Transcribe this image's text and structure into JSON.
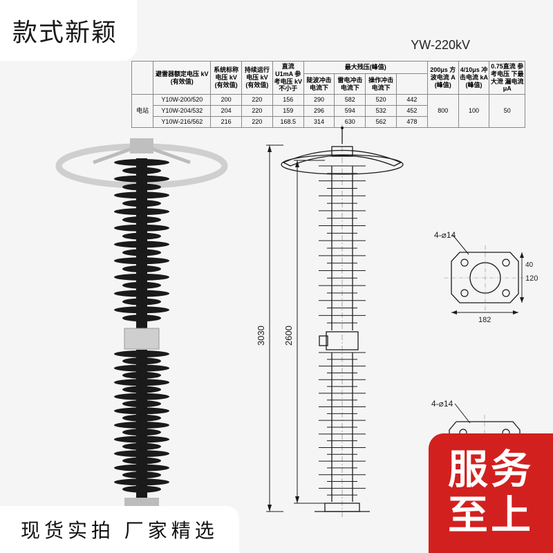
{
  "badges": {
    "top_left": "款式新颖",
    "bottom_left": "现货实拍  厂家精选",
    "bottom_right_line1": "服务",
    "bottom_right_line2": "至上"
  },
  "model_title": "YW-220kV",
  "spec_table": {
    "header_row1": [
      "",
      "避雷器额定电压 kV (有效值)",
      "系统标称电压 kV (有效值)",
      "持续运行电压 kV (有效值)",
      "直流 U1mA 参考电压 kV 不小于",
      "最大残压(峰值)",
      "",
      "",
      "",
      "200μs 方波电流 A (峰值)",
      "4/10μs 冲击电流 kA (峰值)",
      "0.75直流 参考电压 下最大泄 漏电流 μA"
    ],
    "header_row2": [
      "",
      "",
      "",
      "",
      "",
      "陡波冲击电流下",
      "雷电冲击电流下",
      "操作冲击电流下",
      "",
      "",
      "",
      ""
    ],
    "rows": [
      [
        "电站",
        "Y10W-200/520",
        "200",
        "220",
        "156",
        "290",
        "582",
        "520",
        "442",
        "800",
        "100",
        "50"
      ],
      [
        "",
        "Y10W-204/532",
        "204",
        "220",
        "159",
        "296",
        "594",
        "532",
        "452",
        "",
        "",
        ""
      ],
      [
        "",
        "Y10W-216/562",
        "216",
        "220",
        "168.5",
        "314",
        "630",
        "562",
        "478",
        "",
        "",
        ""
      ]
    ],
    "font_size": 9,
    "border_color": "#888888",
    "text_color": "#222222",
    "header_bg": "#f0f0f0"
  },
  "product_photo": {
    "insulator_color": "#1a1a1a",
    "metal_color": "#cfcfcf",
    "ring_color": "#d8d8d8",
    "shed_count_upper": 20,
    "shed_count_lower": 20,
    "background": "#f5f5f5"
  },
  "diagram": {
    "stroke": "#1a1a1a",
    "stroke_width": 1.3,
    "dim_overall_height": "3030",
    "dim_insulator_height": "2600",
    "shed_count_upper": 22,
    "shed_count_lower": 22
  },
  "detail1": {
    "hole_label": "4-⌀14",
    "dim_h": "120",
    "dim_w": "182",
    "dim_inner": "40",
    "stroke": "#1a1a1a"
  },
  "detail2": {
    "hole_label": "4-⌀14",
    "stroke": "#1a1a1a"
  },
  "colors": {
    "red": "#d2201f",
    "page_bg": "#f5f5f5",
    "white": "#ffffff",
    "text": "#111111"
  }
}
